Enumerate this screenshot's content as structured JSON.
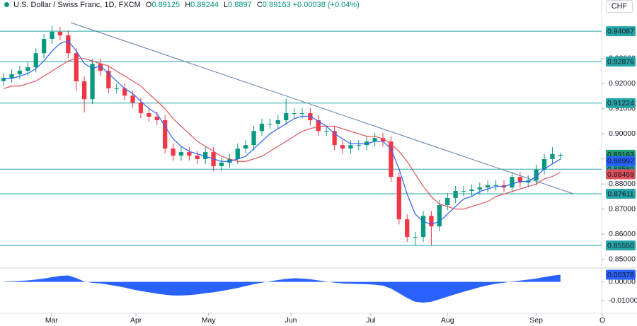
{
  "header": {
    "title": "U.S. Dollar / Swiss Franc, 1D, FXCM",
    "o_label": "O",
    "h_label": "H",
    "l_label": "L",
    "c_label": "C",
    "change": "+0.00038",
    "change_pct": "(+0.04%)",
    "currency": "CHF"
  },
  "chart_data": {
    "type": "candlestick",
    "up_color": "#089981",
    "down_color": "#f23645",
    "open": [
      0.921,
      0.9223,
      0.9237,
      0.9251,
      0.9265,
      0.9321,
      0.9378,
      0.9406,
      0.9392,
      0.9321,
      0.9209,
      0.9138,
      0.9279,
      0.9251,
      0.9181,
      0.9181,
      0.9152,
      0.9124,
      0.9082,
      0.9068,
      0.9054,
      0.8941,
      0.8913,
      0.8927,
      0.8913,
      0.8899,
      0.8927,
      0.8871,
      0.8885,
      0.8899,
      0.8941,
      0.8955,
      0.9011,
      0.904,
      0.904,
      0.9054,
      0.9082,
      0.9082,
      0.9082,
      0.9054,
      0.9011,
      0.9011,
      0.8955,
      0.8941,
      0.8955,
      0.8955,
      0.8969,
      0.8983,
      0.8969,
      0.8828,
      0.8659,
      0.8589,
      0.8589,
      0.8673,
      0.8631,
      0.8716,
      0.8744,
      0.8772,
      0.8772,
      0.8778,
      0.8786,
      0.8795,
      0.8795,
      0.8786,
      0.8828,
      0.8806,
      0.8814,
      0.8857,
      0.8899,
      0.89125
    ],
    "high": [
      0.9243,
      0.9257,
      0.9271,
      0.9285,
      0.9341,
      0.9398,
      0.943,
      0.9426,
      0.9412,
      0.9341,
      0.9229,
      0.9299,
      0.9299,
      0.9271,
      0.9201,
      0.9201,
      0.9172,
      0.9144,
      0.9102,
      0.9088,
      0.9074,
      0.8961,
      0.8947,
      0.8947,
      0.8933,
      0.8947,
      0.8947,
      0.8905,
      0.8919,
      0.8961,
      0.8975,
      0.9031,
      0.906,
      0.906,
      0.9074,
      0.914,
      0.9102,
      0.9102,
      0.9102,
      0.9074,
      0.9031,
      0.9031,
      0.8975,
      0.8975,
      0.8975,
      0.8989,
      0.9003,
      0.9003,
      0.8989,
      0.8848,
      0.8679,
      0.8609,
      0.8693,
      0.8693,
      0.8736,
      0.8764,
      0.8792,
      0.8792,
      0.8798,
      0.8806,
      0.8815,
      0.8815,
      0.8815,
      0.8848,
      0.8848,
      0.8834,
      0.8877,
      0.8919,
      0.8947,
      0.89244
    ],
    "low": [
      0.919,
      0.9203,
      0.9217,
      0.9231,
      0.9245,
      0.9301,
      0.9358,
      0.9372,
      0.9301,
      0.917,
      0.9085,
      0.9118,
      0.9231,
      0.9161,
      0.9161,
      0.9132,
      0.9104,
      0.9062,
      0.9048,
      0.9034,
      0.8921,
      0.8893,
      0.8893,
      0.8893,
      0.8879,
      0.8879,
      0.8851,
      0.8851,
      0.8865,
      0.8879,
      0.8921,
      0.8935,
      0.8991,
      0.902,
      0.902,
      0.9034,
      0.9062,
      0.9062,
      0.9034,
      0.8991,
      0.8991,
      0.8935,
      0.8921,
      0.8921,
      0.8935,
      0.8935,
      0.8949,
      0.8949,
      0.8808,
      0.8639,
      0.8569,
      0.8555,
      0.8569,
      0.8555,
      0.8611,
      0.8696,
      0.8724,
      0.8752,
      0.8752,
      0.8758,
      0.8766,
      0.8775,
      0.8766,
      0.8766,
      0.8786,
      0.8786,
      0.8794,
      0.8837,
      0.8879,
      0.8897
    ],
    "close": [
      0.9223,
      0.9237,
      0.9251,
      0.9265,
      0.9321,
      0.9378,
      0.9406,
      0.9392,
      0.9321,
      0.9209,
      0.9138,
      0.9279,
      0.9251,
      0.9181,
      0.9181,
      0.9152,
      0.9124,
      0.9082,
      0.9068,
      0.9054,
      0.8941,
      0.8913,
      0.8927,
      0.8913,
      0.8899,
      0.8927,
      0.8871,
      0.8885,
      0.8899,
      0.8941,
      0.8955,
      0.9011,
      0.904,
      0.904,
      0.9054,
      0.9082,
      0.9082,
      0.9082,
      0.9054,
      0.9011,
      0.9011,
      0.8955,
      0.8941,
      0.8955,
      0.8955,
      0.8969,
      0.8983,
      0.8969,
      0.8828,
      0.8659,
      0.8589,
      0.8589,
      0.8673,
      0.8631,
      0.8716,
      0.8744,
      0.8772,
      0.8772,
      0.8778,
      0.8786,
      0.8795,
      0.8795,
      0.8786,
      0.8828,
      0.8806,
      0.8814,
      0.8857,
      0.8899,
      0.8919,
      0.89163
    ],
    "last_color": "#1f9e74",
    "ma_fast": {
      "color": "#2962ff",
      "values": [
        0.922,
        0.922,
        0.923,
        0.924,
        0.926,
        0.929,
        0.933,
        0.936,
        0.937,
        0.933,
        0.928,
        0.926,
        0.927,
        0.924,
        0.921,
        0.918,
        0.916,
        0.913,
        0.91,
        0.908,
        0.903,
        0.898,
        0.895,
        0.893,
        0.892,
        0.891,
        0.89,
        0.889,
        0.889,
        0.89,
        0.891,
        0.894,
        0.897,
        0.9,
        0.902,
        0.904,
        0.906,
        0.907,
        0.907,
        0.905,
        0.903,
        0.9,
        0.898,
        0.896,
        0.896,
        0.896,
        0.897,
        0.897,
        0.894,
        0.886,
        0.876,
        0.868,
        0.865,
        0.864,
        0.865,
        0.868,
        0.871,
        0.874,
        0.875,
        0.877,
        0.878,
        0.879,
        0.879,
        0.88,
        0.881,
        0.881,
        0.883,
        0.886,
        0.888,
        0.88992
      ]
    },
    "ma_slow": {
      "color": "#e0525a",
      "values": [
        0.918,
        0.919,
        0.919,
        0.92,
        0.921,
        0.923,
        0.925,
        0.927,
        0.929,
        0.93,
        0.93,
        0.929,
        0.928,
        0.927,
        0.925,
        0.923,
        0.921,
        0.919,
        0.916,
        0.913,
        0.91,
        0.906,
        0.903,
        0.9,
        0.897,
        0.895,
        0.893,
        0.891,
        0.89,
        0.889,
        0.889,
        0.89,
        0.891,
        0.893,
        0.895,
        0.897,
        0.899,
        0.901,
        0.902,
        0.903,
        0.903,
        0.903,
        0.902,
        0.901,
        0.9,
        0.899,
        0.899,
        0.898,
        0.896,
        0.893,
        0.889,
        0.884,
        0.879,
        0.875,
        0.872,
        0.871,
        0.87,
        0.87,
        0.871,
        0.872,
        0.873,
        0.875,
        0.876,
        0.877,
        0.878,
        0.879,
        0.88,
        0.882,
        0.883,
        0.88469
      ]
    },
    "levels": [
      0.94087,
      0.92876,
      0.91224,
      0.88589,
      0.87611,
      {
        "value": 0.8555,
        "label": "0.85550"
      }
    ],
    "level_color": "#26a5a9",
    "xlim": [
      -0.45,
      74.1
    ],
    "xticks": [
      {
        "value": 5.95,
        "label": "Mar"
      },
      {
        "value": 16.4,
        "label": "Apr"
      },
      {
        "value": 25.4,
        "label": "May"
      },
      {
        "value": 35.6,
        "label": "Jun"
      },
      {
        "value": 45.5,
        "label": "Jul"
      },
      {
        "value": 55.0,
        "label": "Aug"
      },
      {
        "value": 66.0,
        "label": "Sep"
      },
      {
        "value": 74.2,
        "label": "O"
      }
    ],
    "ylim": [
      0.8468,
      0.9533
    ],
    "yticks": [
      {
        "value": 0.85,
        "label": "0.85000"
      },
      {
        "value": 0.86,
        "label": "0.86000"
      },
      {
        "value": 0.87,
        "label": "0.87000"
      },
      {
        "value": 0.88,
        "label": "0.88000"
      },
      {
        "value": 0.89,
        "label": "0.89000"
      },
      {
        "value": 0.9,
        "label": "0.90000"
      },
      {
        "value": 0.91,
        "label": "0.91000"
      },
      {
        "value": 0.92,
        "label": "0.92000"
      },
      {
        "value": 0.93,
        "label": "0.93000"
      }
    ],
    "oscillator": {
      "color": "#2962ff",
      "values": [
        0.0002,
        0.0003,
        0.0005,
        0.0008,
        0.0012,
        0.0018,
        0.0025,
        0.0032,
        0.0034,
        0.002,
        0.0002,
        -0.0005,
        -0.0008,
        -0.0015,
        -0.0022,
        -0.003,
        -0.004,
        -0.0048,
        -0.0055,
        -0.0062,
        -0.0068,
        -0.0072,
        -0.0072,
        -0.007,
        -0.0066,
        -0.006,
        -0.0055,
        -0.0048,
        -0.004,
        -0.0032,
        -0.0022,
        -0.0012,
        -0.0004,
        0.0003,
        0.001,
        0.0016,
        0.0019,
        0.0018,
        0.0014,
        0.0008,
        0.0002,
        -0.0004,
        -0.0008,
        -0.001,
        -0.0011,
        -0.0012,
        -0.0015,
        -0.002,
        -0.0035,
        -0.006,
        -0.0085,
        -0.0105,
        -0.011,
        -0.0105,
        -0.0092,
        -0.0078,
        -0.0065,
        -0.0052,
        -0.004,
        -0.0028,
        -0.0018,
        -0.001,
        -0.0004,
        0.0002,
        0.0007,
        0.0012,
        0.0018,
        0.0026,
        0.0033,
        0.00378
      ],
      "ylim": [
        -0.0166,
        0.0066
      ],
      "yticks": [
        {
          "value": 0,
          "label": "0.00000"
        },
        {
          "value": -0.01,
          "label": "-0.01000"
        }
      ]
    }
  }
}
